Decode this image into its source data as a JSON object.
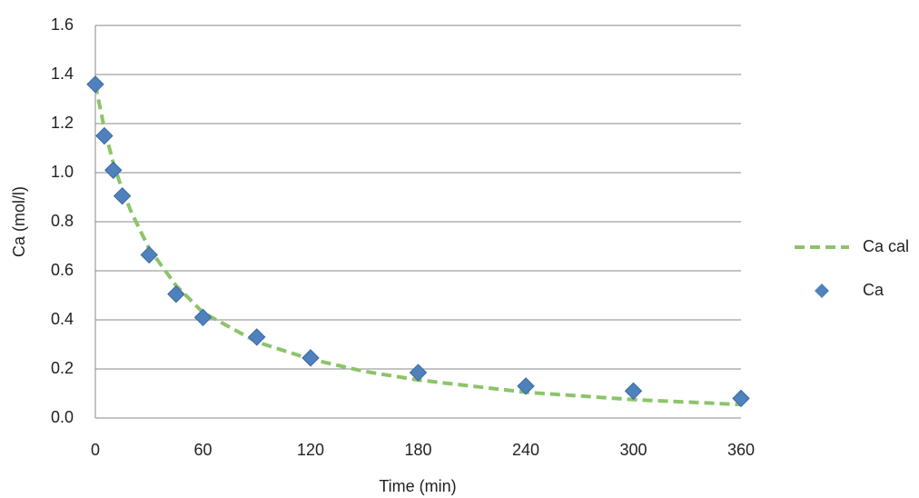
{
  "chart_data": {
    "type": "scatter",
    "x_label": "Time (min)",
    "y_label": "Ca (mol/l)",
    "xlim": [
      0,
      360
    ],
    "xticks": [
      0,
      60,
      120,
      180,
      240,
      300,
      360
    ],
    "ylim": [
      0,
      1.6
    ],
    "yticks": [
      {
        "value": 0,
        "label": "0.0"
      },
      {
        "value": 0.2,
        "label": "0.2"
      },
      {
        "value": 0.4,
        "label": "0.4"
      },
      {
        "value": 0.6,
        "label": "0.6"
      },
      {
        "value": 0.8,
        "label": "0.8"
      },
      {
        "value": 1,
        "label": "1.0"
      },
      {
        "value": 1.2,
        "label": "1.2"
      },
      {
        "value": 1.4,
        "label": "1.4"
      },
      {
        "value": 1.6,
        "label": "1.6"
      }
    ],
    "grid": true,
    "legend": "right",
    "series": [
      {
        "name": "Ca cal",
        "style": "dashed-line",
        "color": "#8cc46a",
        "x": [
          0,
          5,
          10,
          15,
          20,
          30,
          45,
          60,
          90,
          120,
          150,
          180,
          240,
          300,
          360
        ],
        "values": [
          1.36,
          1.18,
          1.04,
          0.93,
          0.84,
          0.69,
          0.54,
          0.43,
          0.31,
          0.24,
          0.19,
          0.155,
          0.105,
          0.075,
          0.055
        ]
      },
      {
        "name": "Ca",
        "style": "diamond",
        "color": "#4f81bd",
        "x": [
          0,
          5,
          10,
          15,
          30,
          45,
          60,
          90,
          120,
          180,
          240,
          300,
          360
        ],
        "values": [
          1.36,
          1.15,
          1.01,
          0.905,
          0.665,
          0.505,
          0.41,
          0.33,
          0.245,
          0.185,
          0.13,
          0.11,
          0.08
        ]
      }
    ]
  }
}
